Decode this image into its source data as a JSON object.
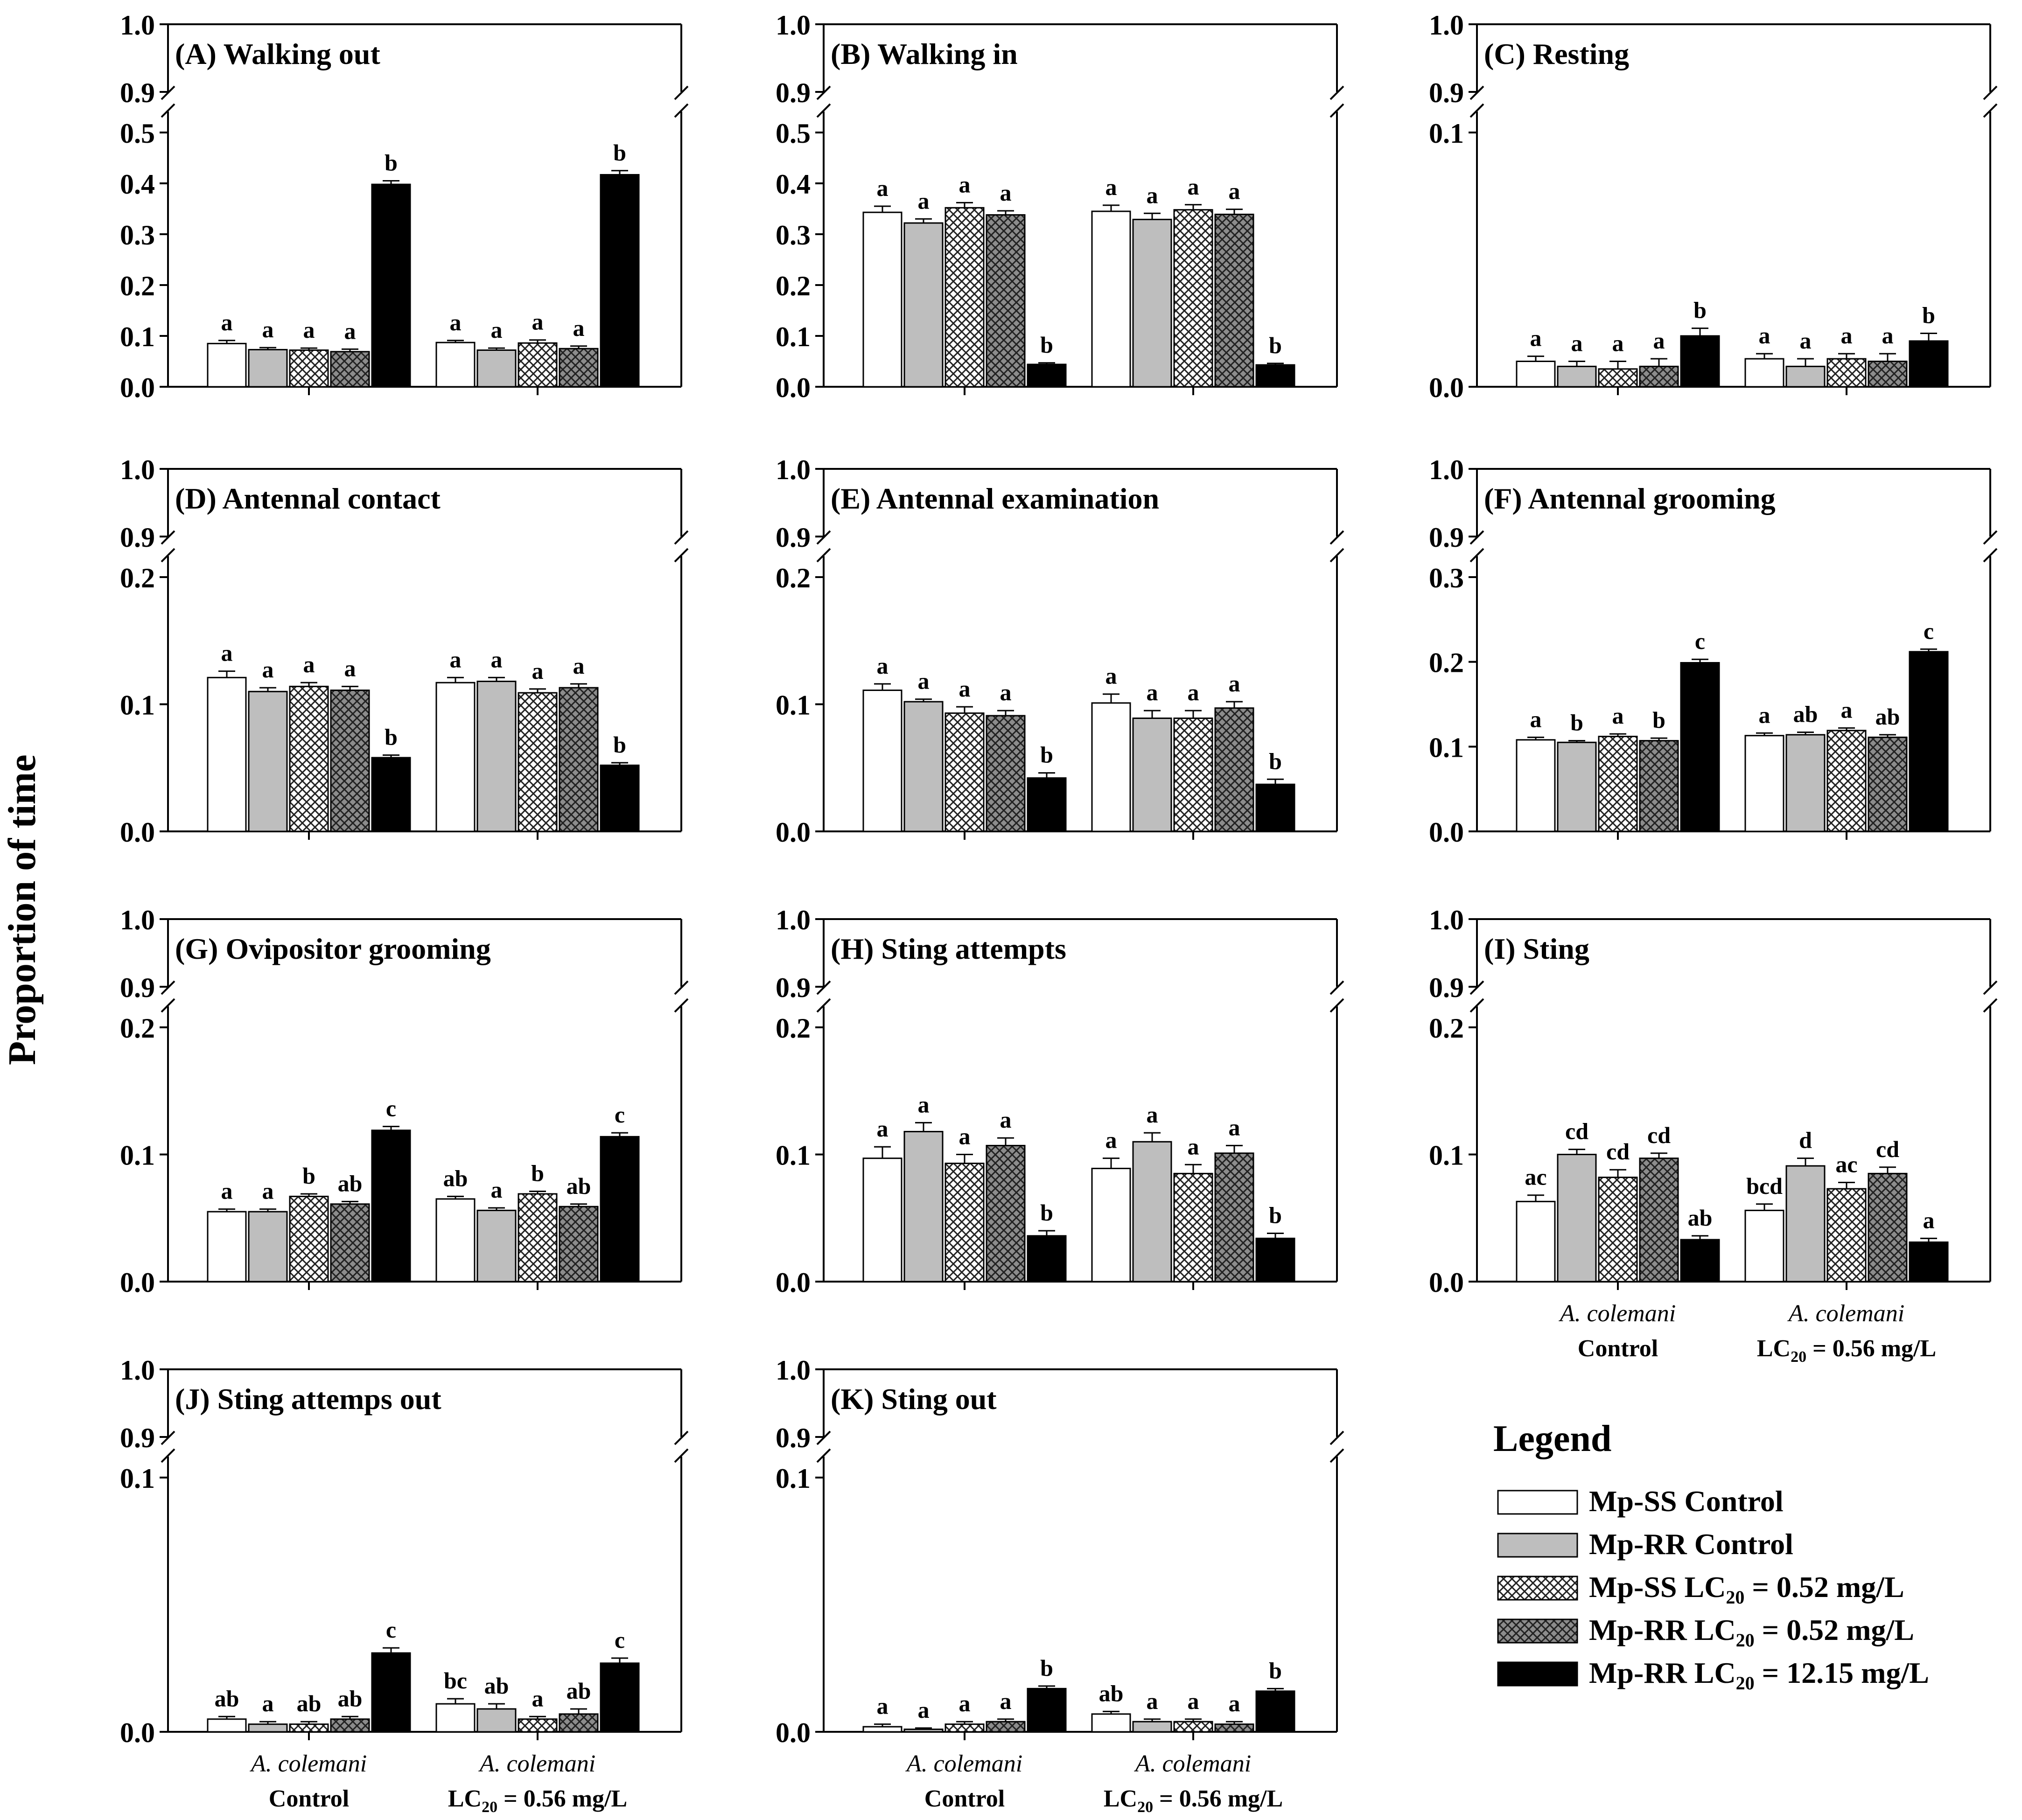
{
  "y_axis_label": "Proportion of time",
  "legend": {
    "title": "Legend",
    "items": [
      {
        "label": "Mp-SS Control",
        "pattern": "white"
      },
      {
        "label": "Mp-RR Control",
        "pattern": "gray"
      },
      {
        "label": "Mp-SS LC",
        "sub": "20",
        "suffix": " = 0.52 mg/L",
        "pattern": "cross-light"
      },
      {
        "label": "Mp-RR LC",
        "sub": "20",
        "suffix": " = 0.52 mg/L",
        "pattern": "cross-dark"
      },
      {
        "label": "Mp-RR LC",
        "sub": "20",
        "suffix": " = 12.15 mg/L",
        "pattern": "black"
      }
    ]
  },
  "groups": [
    {
      "line1": "A. colemani",
      "line2": "Control"
    },
    {
      "line1": "A. colemani",
      "line2_pre": "LC",
      "line2_sub": "20",
      "line2_post": " = 0.56 mg/L"
    }
  ],
  "chart_data": [
    {
      "type": "bar",
      "title": "(A) Walking out",
      "ylim": [
        0,
        0.5
      ],
      "top_ticks": [
        "1.0",
        "0.9"
      ],
      "ticks": [
        0,
        0.1,
        0.2,
        0.3,
        0.4,
        0.5
      ],
      "tick_labels": [
        "0.0",
        "0.1",
        "0.2",
        "0.3",
        "0.4",
        "0.5"
      ],
      "show_group_labels": false,
      "series": [
        {
          "values": [
            0.085,
            0.087
          ],
          "errors": [
            0.006,
            0.004
          ],
          "letters": [
            "a",
            "a"
          ]
        },
        {
          "values": [
            0.073,
            0.072
          ],
          "errors": [
            0.004,
            0.004
          ],
          "letters": [
            "a",
            "a"
          ]
        },
        {
          "values": [
            0.072,
            0.086
          ],
          "errors": [
            0.004,
            0.006
          ],
          "letters": [
            "a",
            "a"
          ]
        },
        {
          "values": [
            0.069,
            0.075
          ],
          "errors": [
            0.005,
            0.005
          ],
          "letters": [
            "a",
            "a"
          ]
        },
        {
          "values": [
            0.398,
            0.417
          ],
          "errors": [
            0.007,
            0.008
          ],
          "letters": [
            "b",
            "b"
          ]
        }
      ]
    },
    {
      "type": "bar",
      "title": "(B) Walking in",
      "ylim": [
        0,
        0.5
      ],
      "top_ticks": [
        "1.0",
        "0.9"
      ],
      "ticks": [
        0,
        0.1,
        0.2,
        0.3,
        0.4,
        0.5
      ],
      "tick_labels": [
        "0.0",
        "0.1",
        "0.2",
        "0.3",
        "0.4",
        "0.5"
      ],
      "show_group_labels": false,
      "series": [
        {
          "values": [
            0.343,
            0.345
          ],
          "errors": [
            0.012,
            0.012
          ],
          "letters": [
            "a",
            "a"
          ]
        },
        {
          "values": [
            0.322,
            0.329
          ],
          "errors": [
            0.008,
            0.012
          ],
          "letters": [
            "a",
            "a"
          ]
        },
        {
          "values": [
            0.352,
            0.348
          ],
          "errors": [
            0.01,
            0.01
          ],
          "letters": [
            "a",
            "a"
          ]
        },
        {
          "values": [
            0.338,
            0.339
          ],
          "errors": [
            0.008,
            0.01
          ],
          "letters": [
            "a",
            "a"
          ]
        },
        {
          "values": [
            0.044,
            0.043
          ],
          "errors": [
            0.003,
            0.003
          ],
          "letters": [
            "b",
            "b"
          ]
        }
      ]
    },
    {
      "type": "bar",
      "title": "(C) Resting",
      "ylim": [
        0,
        0.1
      ],
      "top_ticks": [
        "1.0",
        "0.9"
      ],
      "ticks": [
        0,
        0.1
      ],
      "tick_labels": [
        "0.0",
        "0.1"
      ],
      "show_group_labels": false,
      "series": [
        {
          "values": [
            0.01,
            0.011
          ],
          "errors": [
            0.002,
            0.002
          ],
          "letters": [
            "a",
            "a"
          ]
        },
        {
          "values": [
            0.008,
            0.008
          ],
          "errors": [
            0.002,
            0.003
          ],
          "letters": [
            "a",
            "a"
          ]
        },
        {
          "values": [
            0.007,
            0.011
          ],
          "errors": [
            0.003,
            0.002
          ],
          "letters": [
            "a",
            "a"
          ]
        },
        {
          "values": [
            0.008,
            0.01
          ],
          "errors": [
            0.003,
            0.003
          ],
          "letters": [
            "a",
            "a"
          ]
        },
        {
          "values": [
            0.02,
            0.018
          ],
          "errors": [
            0.003,
            0.003
          ],
          "letters": [
            "b",
            "b"
          ]
        }
      ]
    },
    {
      "type": "bar",
      "title": "(D) Antennal contact",
      "ylim": [
        0,
        0.2
      ],
      "top_ticks": [
        "1.0",
        "0.9"
      ],
      "ticks": [
        0,
        0.1,
        0.2
      ],
      "tick_labels": [
        "0.0",
        "0.1",
        "0.2"
      ],
      "show_group_labels": false,
      "series": [
        {
          "values": [
            0.121,
            0.117
          ],
          "errors": [
            0.005,
            0.004
          ],
          "letters": [
            "a",
            "a"
          ]
        },
        {
          "values": [
            0.11,
            0.118
          ],
          "errors": [
            0.003,
            0.003
          ],
          "letters": [
            "a",
            "a"
          ]
        },
        {
          "values": [
            0.114,
            0.109
          ],
          "errors": [
            0.003,
            0.003
          ],
          "letters": [
            "a",
            "a"
          ]
        },
        {
          "values": [
            0.111,
            0.113
          ],
          "errors": [
            0.003,
            0.003
          ],
          "letters": [
            "a",
            "a"
          ]
        },
        {
          "values": [
            0.058,
            0.052
          ],
          "errors": [
            0.002,
            0.002
          ],
          "letters": [
            "b",
            "b"
          ]
        }
      ]
    },
    {
      "type": "bar",
      "title": "(E) Antennal examination",
      "ylim": [
        0,
        0.2
      ],
      "top_ticks": [
        "1.0",
        "0.9"
      ],
      "ticks": [
        0,
        0.1,
        0.2
      ],
      "tick_labels": [
        "0.0",
        "0.1",
        "0.2"
      ],
      "show_group_labels": false,
      "series": [
        {
          "values": [
            0.111,
            0.101
          ],
          "errors": [
            0.005,
            0.007
          ],
          "letters": [
            "a",
            "a"
          ]
        },
        {
          "values": [
            0.102,
            0.089
          ],
          "errors": [
            0.002,
            0.006
          ],
          "letters": [
            "a",
            "a"
          ]
        },
        {
          "values": [
            0.093,
            0.089
          ],
          "errors": [
            0.005,
            0.006
          ],
          "letters": [
            "a",
            "a"
          ]
        },
        {
          "values": [
            0.091,
            0.097
          ],
          "errors": [
            0.004,
            0.005
          ],
          "letters": [
            "a",
            "a"
          ]
        },
        {
          "values": [
            0.042,
            0.037
          ],
          "errors": [
            0.004,
            0.004
          ],
          "letters": [
            "b",
            "b"
          ]
        }
      ]
    },
    {
      "type": "bar",
      "title": "(F) Antennal grooming",
      "ylim": [
        0,
        0.3
      ],
      "top_ticks": [
        "1.0",
        "0.9"
      ],
      "ticks": [
        0,
        0.1,
        0.2,
        0.3
      ],
      "tick_labels": [
        "0.0",
        "0.1",
        "0.2",
        "0.3"
      ],
      "show_group_labels": false,
      "series": [
        {
          "values": [
            0.108,
            0.113
          ],
          "errors": [
            0.003,
            0.003
          ],
          "letters": [
            "a",
            "a"
          ]
        },
        {
          "values": [
            0.105,
            0.114
          ],
          "errors": [
            0.002,
            0.003
          ],
          "letters": [
            "b",
            "ab"
          ]
        },
        {
          "values": [
            0.112,
            0.119
          ],
          "errors": [
            0.003,
            0.003
          ],
          "letters": [
            "a",
            "a"
          ]
        },
        {
          "values": [
            0.107,
            0.111
          ],
          "errors": [
            0.003,
            0.003
          ],
          "letters": [
            "b",
            "ab"
          ]
        },
        {
          "values": [
            0.199,
            0.212
          ],
          "errors": [
            0.004,
            0.003
          ],
          "letters": [
            "c",
            "c"
          ]
        }
      ]
    },
    {
      "type": "bar",
      "title": "(G) Ovipositor grooming",
      "ylim": [
        0,
        0.2
      ],
      "top_ticks": [
        "1.0",
        "0.9"
      ],
      "ticks": [
        0,
        0.1,
        0.2
      ],
      "tick_labels": [
        "0.0",
        "0.1",
        "0.2"
      ],
      "show_group_labels": false,
      "series": [
        {
          "values": [
            0.055,
            0.065
          ],
          "errors": [
            0.002,
            0.002
          ],
          "letters": [
            "a",
            "ab"
          ]
        },
        {
          "values": [
            0.055,
            0.056
          ],
          "errors": [
            0.002,
            0.002
          ],
          "letters": [
            "a",
            "a"
          ]
        },
        {
          "values": [
            0.067,
            0.069
          ],
          "errors": [
            0.002,
            0.002
          ],
          "letters": [
            "b",
            "b"
          ]
        },
        {
          "values": [
            0.061,
            0.059
          ],
          "errors": [
            0.002,
            0.002
          ],
          "letters": [
            "ab",
            "ab"
          ]
        },
        {
          "values": [
            0.119,
            0.114
          ],
          "errors": [
            0.003,
            0.003
          ],
          "letters": [
            "c",
            "c"
          ]
        }
      ]
    },
    {
      "type": "bar",
      "title": "(H) Sting attempts",
      "ylim": [
        0,
        0.2
      ],
      "top_ticks": [
        "1.0",
        "0.9"
      ],
      "ticks": [
        0,
        0.1,
        0.2
      ],
      "tick_labels": [
        "0.0",
        "0.1",
        "0.2"
      ],
      "show_group_labels": false,
      "series": [
        {
          "values": [
            0.097,
            0.089
          ],
          "errors": [
            0.009,
            0.008
          ],
          "letters": [
            "a",
            "a"
          ]
        },
        {
          "values": [
            0.118,
            0.11
          ],
          "errors": [
            0.007,
            0.007
          ],
          "letters": [
            "a",
            "a"
          ]
        },
        {
          "values": [
            0.093,
            0.085
          ],
          "errors": [
            0.007,
            0.007
          ],
          "letters": [
            "a",
            "a"
          ]
        },
        {
          "values": [
            0.107,
            0.101
          ],
          "errors": [
            0.006,
            0.006
          ],
          "letters": [
            "a",
            "a"
          ]
        },
        {
          "values": [
            0.036,
            0.034
          ],
          "errors": [
            0.004,
            0.004
          ],
          "letters": [
            "b",
            "b"
          ]
        }
      ]
    },
    {
      "type": "bar",
      "title": "(I) Sting",
      "ylim": [
        0,
        0.2
      ],
      "top_ticks": [
        "1.0",
        "0.9"
      ],
      "ticks": [
        0,
        0.1,
        0.2
      ],
      "tick_labels": [
        "0.0",
        "0.1",
        "0.2"
      ],
      "show_group_labels": true,
      "series": [
        {
          "values": [
            0.063,
            0.056
          ],
          "errors": [
            0.005,
            0.005
          ],
          "letters": [
            "ac",
            "bcd"
          ]
        },
        {
          "values": [
            0.1,
            0.091
          ],
          "errors": [
            0.004,
            0.006
          ],
          "letters": [
            "cd",
            "d"
          ]
        },
        {
          "values": [
            0.082,
            0.073
          ],
          "errors": [
            0.006,
            0.005
          ],
          "letters": [
            "cd",
            "ac"
          ]
        },
        {
          "values": [
            0.097,
            0.085
          ],
          "errors": [
            0.004,
            0.005
          ],
          "letters": [
            "cd",
            "cd"
          ]
        },
        {
          "values": [
            0.033,
            0.031
          ],
          "errors": [
            0.003,
            0.003
          ],
          "letters": [
            "ab",
            "a"
          ]
        }
      ]
    },
    {
      "type": "bar",
      "title": "(J) Sting attemps out",
      "ylim": [
        0,
        0.1
      ],
      "top_ticks": [
        "1.0",
        "0.9"
      ],
      "ticks": [
        0,
        0.1
      ],
      "tick_labels": [
        "0.0",
        "0.1"
      ],
      "show_group_labels": true,
      "series": [
        {
          "values": [
            0.005,
            0.011
          ],
          "errors": [
            0.001,
            0.002
          ],
          "letters": [
            "ab",
            "bc"
          ]
        },
        {
          "values": [
            0.003,
            0.009
          ],
          "errors": [
            0.001,
            0.002
          ],
          "letters": [
            "a",
            "ab"
          ]
        },
        {
          "values": [
            0.003,
            0.005
          ],
          "errors": [
            0.001,
            0.001
          ],
          "letters": [
            "ab",
            "a"
          ]
        },
        {
          "values": [
            0.005,
            0.007
          ],
          "errors": [
            0.001,
            0.002
          ],
          "letters": [
            "ab",
            "ab"
          ]
        },
        {
          "values": [
            0.031,
            0.027
          ],
          "errors": [
            0.002,
            0.002
          ],
          "letters": [
            "c",
            "c"
          ]
        }
      ]
    },
    {
      "type": "bar",
      "title": "(K) Sting out",
      "ylim": [
        0,
        0.1
      ],
      "top_ticks": [
        "1.0",
        "0.9"
      ],
      "ticks": [
        0,
        0.1
      ],
      "tick_labels": [
        "0.0",
        "0.1"
      ],
      "show_group_labels": true,
      "series": [
        {
          "values": [
            0.002,
            0.007
          ],
          "errors": [
            0.001,
            0.001
          ],
          "letters": [
            "a",
            "ab"
          ]
        },
        {
          "values": [
            0.001,
            0.004
          ],
          "errors": [
            0.0005,
            0.001
          ],
          "letters": [
            "a",
            "a"
          ]
        },
        {
          "values": [
            0.003,
            0.004
          ],
          "errors": [
            0.001,
            0.001
          ],
          "letters": [
            "a",
            "a"
          ]
        },
        {
          "values": [
            0.004,
            0.003
          ],
          "errors": [
            0.001,
            0.001
          ],
          "letters": [
            "a",
            "a"
          ]
        },
        {
          "values": [
            0.017,
            0.016
          ],
          "errors": [
            0.001,
            0.001
          ],
          "letters": [
            "b",
            "b"
          ]
        }
      ]
    }
  ]
}
